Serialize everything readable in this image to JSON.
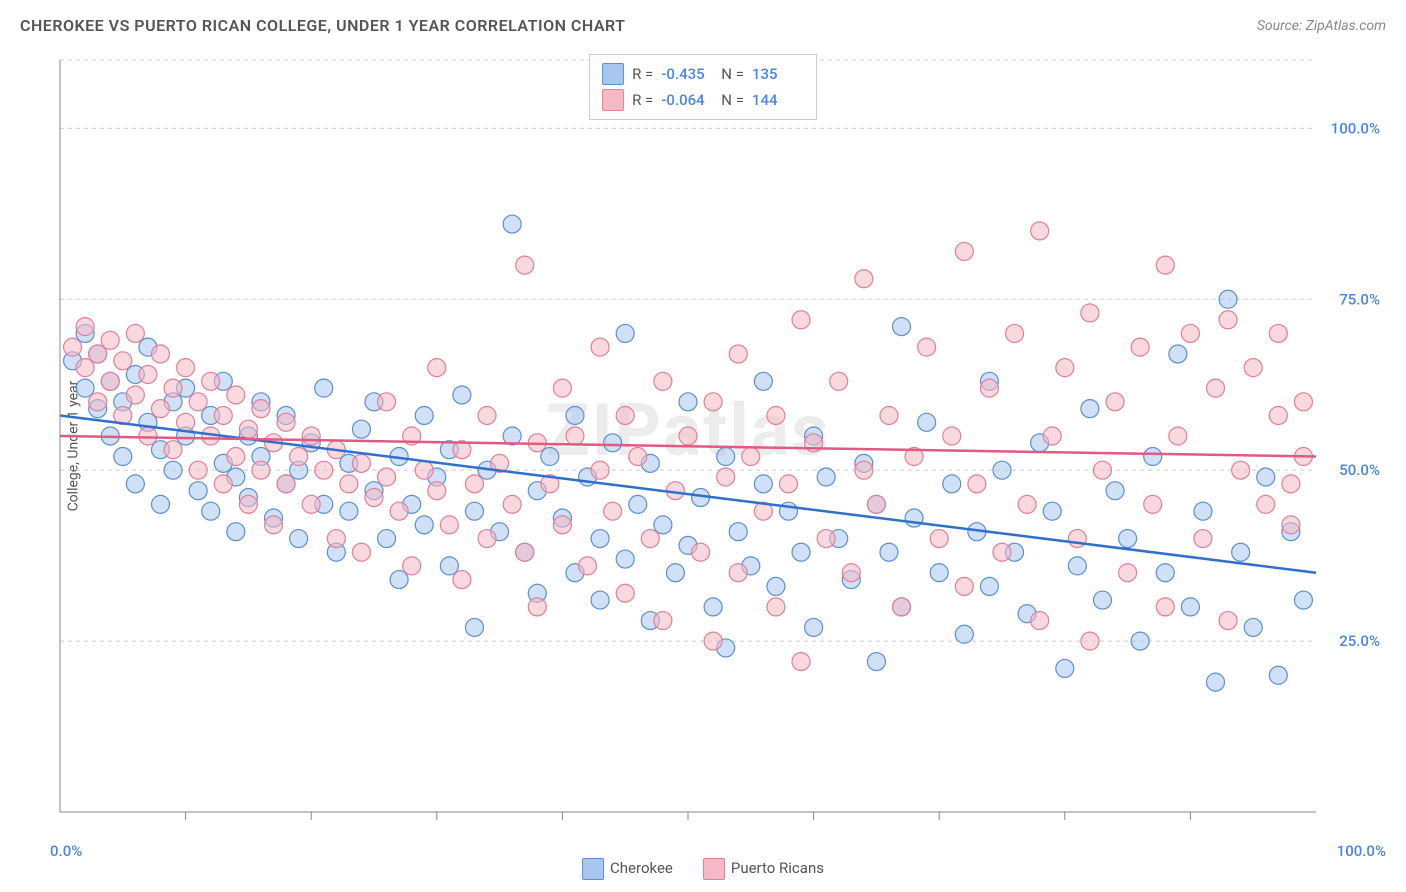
{
  "title": "CHEROKEE VS PUERTO RICAN COLLEGE, UNDER 1 YEAR CORRELATION CHART",
  "source": "Source: ZipAtlas.com",
  "ylabel": "College, Under 1 year",
  "watermark": "ZIPatlas",
  "chart": {
    "type": "scatter",
    "xlim": [
      0,
      100
    ],
    "ylim": [
      0,
      110
    ],
    "x_tick_start": 0,
    "x_tick_end": 100,
    "x_tick_step_minor": 10,
    "x_tick_labels": [
      {
        "pos": 0,
        "label": "0.0%"
      },
      {
        "pos": 100,
        "label": "100.0%"
      }
    ],
    "y_gridlines": [
      25,
      50,
      75,
      100,
      110
    ],
    "y_tick_labels": [
      {
        "pos": 25,
        "label": "25.0%"
      },
      {
        "pos": 50,
        "label": "50.0%"
      },
      {
        "pos": 75,
        "label": "75.0%"
      },
      {
        "pos": 100,
        "label": "100.0%"
      }
    ],
    "background_color": "#ffffff",
    "grid_color": "#cccccc",
    "grid_dash": "4 4",
    "tick_label_color": "#4a86e8",
    "axis_color": "#888888",
    "marker_radius": 9,
    "marker_opacity": 0.55,
    "trend_line_width": 2.5,
    "series": [
      {
        "name": "Cherokee",
        "fill": "#a9c7ee",
        "stroke": "#5b8fd6",
        "trend_color": "#2f6fd0",
        "R": "-0.435",
        "N": "135",
        "trend": {
          "x1": 0,
          "y1": 58,
          "x2": 100,
          "y2": 35
        },
        "points": [
          [
            1,
            66
          ],
          [
            2,
            62
          ],
          [
            2,
            70
          ],
          [
            3,
            59
          ],
          [
            3,
            67
          ],
          [
            4,
            63
          ],
          [
            4,
            55
          ],
          [
            5,
            60
          ],
          [
            5,
            52
          ],
          [
            6,
            64
          ],
          [
            6,
            48
          ],
          [
            7,
            57
          ],
          [
            7,
            68
          ],
          [
            8,
            53
          ],
          [
            8,
            45
          ],
          [
            9,
            60
          ],
          [
            9,
            50
          ],
          [
            10,
            62
          ],
          [
            10,
            55
          ],
          [
            11,
            47
          ],
          [
            12,
            58
          ],
          [
            12,
            44
          ],
          [
            13,
            51
          ],
          [
            13,
            63
          ],
          [
            14,
            49
          ],
          [
            14,
            41
          ],
          [
            15,
            55
          ],
          [
            15,
            46
          ],
          [
            16,
            60
          ],
          [
            16,
            52
          ],
          [
            17,
            43
          ],
          [
            18,
            58
          ],
          [
            18,
            48
          ],
          [
            19,
            50
          ],
          [
            19,
            40
          ],
          [
            20,
            54
          ],
          [
            21,
            45
          ],
          [
            21,
            62
          ],
          [
            22,
            38
          ],
          [
            23,
            51
          ],
          [
            23,
            44
          ],
          [
            24,
            56
          ],
          [
            25,
            47
          ],
          [
            25,
            60
          ],
          [
            26,
            40
          ],
          [
            27,
            52
          ],
          [
            27,
            34
          ],
          [
            28,
            45
          ],
          [
            29,
            58
          ],
          [
            29,
            42
          ],
          [
            30,
            49
          ],
          [
            31,
            36
          ],
          [
            31,
            53
          ],
          [
            32,
            61
          ],
          [
            33,
            44
          ],
          [
            33,
            27
          ],
          [
            34,
            50
          ],
          [
            35,
            41
          ],
          [
            36,
            55
          ],
          [
            36,
            86
          ],
          [
            37,
            38
          ],
          [
            38,
            47
          ],
          [
            38,
            32
          ],
          [
            39,
            52
          ],
          [
            40,
            43
          ],
          [
            41,
            35
          ],
          [
            41,
            58
          ],
          [
            42,
            49
          ],
          [
            43,
            40
          ],
          [
            43,
            31
          ],
          [
            44,
            54
          ],
          [
            45,
            70
          ],
          [
            45,
            37
          ],
          [
            46,
            45
          ],
          [
            47,
            28
          ],
          [
            47,
            51
          ],
          [
            48,
            42
          ],
          [
            49,
            35
          ],
          [
            50,
            60
          ],
          [
            50,
            39
          ],
          [
            51,
            46
          ],
          [
            52,
            30
          ],
          [
            53,
            52
          ],
          [
            53,
            24
          ],
          [
            54,
            41
          ],
          [
            55,
            36
          ],
          [
            56,
            48
          ],
          [
            56,
            63
          ],
          [
            57,
            33
          ],
          [
            58,
            44
          ],
          [
            59,
            38
          ],
          [
            60,
            55
          ],
          [
            60,
            27
          ],
          [
            61,
            49
          ],
          [
            62,
            40
          ],
          [
            63,
            34
          ],
          [
            64,
            51
          ],
          [
            65,
            22
          ],
          [
            65,
            45
          ],
          [
            66,
            38
          ],
          [
            67,
            71
          ],
          [
            67,
            30
          ],
          [
            68,
            43
          ],
          [
            69,
            57
          ],
          [
            70,
            35
          ],
          [
            71,
            48
          ],
          [
            72,
            26
          ],
          [
            73,
            41
          ],
          [
            74,
            63
          ],
          [
            74,
            33
          ],
          [
            75,
            50
          ],
          [
            76,
            38
          ],
          [
            77,
            29
          ],
          [
            78,
            54
          ],
          [
            79,
            44
          ],
          [
            80,
            21
          ],
          [
            81,
            36
          ],
          [
            82,
            59
          ],
          [
            83,
            31
          ],
          [
            84,
            47
          ],
          [
            85,
            40
          ],
          [
            86,
            25
          ],
          [
            87,
            52
          ],
          [
            88,
            35
          ],
          [
            89,
            67
          ],
          [
            90,
            30
          ],
          [
            91,
            44
          ],
          [
            92,
            19
          ],
          [
            93,
            75
          ],
          [
            94,
            38
          ],
          [
            95,
            27
          ],
          [
            96,
            49
          ],
          [
            97,
            20
          ],
          [
            98,
            41
          ],
          [
            99,
            31
          ]
        ]
      },
      {
        "name": "Puerto Ricans",
        "fill": "#f4b9c5",
        "stroke": "#e37f96",
        "trend_color": "#e05a82",
        "R": "-0.064",
        "N": "144",
        "trend": {
          "x1": 0,
          "y1": 55,
          "x2": 100,
          "y2": 52
        },
        "points": [
          [
            1,
            68
          ],
          [
            2,
            65
          ],
          [
            2,
            71
          ],
          [
            3,
            67
          ],
          [
            3,
            60
          ],
          [
            4,
            69
          ],
          [
            4,
            63
          ],
          [
            5,
            66
          ],
          [
            5,
            58
          ],
          [
            6,
            70
          ],
          [
            6,
            61
          ],
          [
            7,
            64
          ],
          [
            7,
            55
          ],
          [
            8,
            67
          ],
          [
            8,
            59
          ],
          [
            9,
            62
          ],
          [
            9,
            53
          ],
          [
            10,
            65
          ],
          [
            10,
            57
          ],
          [
            11,
            60
          ],
          [
            11,
            50
          ],
          [
            12,
            63
          ],
          [
            12,
            55
          ],
          [
            13,
            58
          ],
          [
            13,
            48
          ],
          [
            14,
            61
          ],
          [
            14,
            52
          ],
          [
            15,
            56
          ],
          [
            15,
            45
          ],
          [
            16,
            59
          ],
          [
            16,
            50
          ],
          [
            17,
            54
          ],
          [
            17,
            42
          ],
          [
            18,
            57
          ],
          [
            18,
            48
          ],
          [
            19,
            52
          ],
          [
            20,
            55
          ],
          [
            20,
            45
          ],
          [
            21,
            50
          ],
          [
            22,
            53
          ],
          [
            22,
            40
          ],
          [
            23,
            48
          ],
          [
            24,
            51
          ],
          [
            24,
            38
          ],
          [
            25,
            46
          ],
          [
            26,
            49
          ],
          [
            26,
            60
          ],
          [
            27,
            44
          ],
          [
            28,
            55
          ],
          [
            28,
            36
          ],
          [
            29,
            50
          ],
          [
            30,
            47
          ],
          [
            30,
            65
          ],
          [
            31,
            42
          ],
          [
            32,
            53
          ],
          [
            32,
            34
          ],
          [
            33,
            48
          ],
          [
            34,
            58
          ],
          [
            34,
            40
          ],
          [
            35,
            51
          ],
          [
            36,
            45
          ],
          [
            37,
            80
          ],
          [
            37,
            38
          ],
          [
            38,
            54
          ],
          [
            38,
            30
          ],
          [
            39,
            48
          ],
          [
            40,
            62
          ],
          [
            40,
            42
          ],
          [
            41,
            55
          ],
          [
            42,
            36
          ],
          [
            43,
            50
          ],
          [
            43,
            68
          ],
          [
            44,
            44
          ],
          [
            45,
            58
          ],
          [
            45,
            32
          ],
          [
            46,
            52
          ],
          [
            47,
            40
          ],
          [
            48,
            63
          ],
          [
            48,
            28
          ],
          [
            49,
            47
          ],
          [
            50,
            55
          ],
          [
            51,
            38
          ],
          [
            52,
            60
          ],
          [
            52,
            25
          ],
          [
            53,
            49
          ],
          [
            54,
            67
          ],
          [
            54,
            35
          ],
          [
            55,
            52
          ],
          [
            56,
            44
          ],
          [
            57,
            58
          ],
          [
            57,
            30
          ],
          [
            58,
            48
          ],
          [
            59,
            72
          ],
          [
            59,
            22
          ],
          [
            60,
            54
          ],
          [
            61,
            40
          ],
          [
            62,
            63
          ],
          [
            63,
            35
          ],
          [
            64,
            50
          ],
          [
            64,
            78
          ],
          [
            65,
            45
          ],
          [
            66,
            58
          ],
          [
            67,
            30
          ],
          [
            68,
            52
          ],
          [
            69,
            68
          ],
          [
            70,
            40
          ],
          [
            71,
            55
          ],
          [
            72,
            82
          ],
          [
            72,
            33
          ],
          [
            73,
            48
          ],
          [
            74,
            62
          ],
          [
            75,
            38
          ],
          [
            76,
            70
          ],
          [
            77,
            45
          ],
          [
            78,
            85
          ],
          [
            78,
            28
          ],
          [
            79,
            55
          ],
          [
            80,
            65
          ],
          [
            81,
            40
          ],
          [
            82,
            73
          ],
          [
            82,
            25
          ],
          [
            83,
            50
          ],
          [
            84,
            60
          ],
          [
            85,
            35
          ],
          [
            86,
            68
          ],
          [
            87,
            45
          ],
          [
            88,
            80
          ],
          [
            88,
            30
          ],
          [
            89,
            55
          ],
          [
            90,
            70
          ],
          [
            91,
            40
          ],
          [
            92,
            62
          ],
          [
            93,
            72
          ],
          [
            93,
            28
          ],
          [
            94,
            50
          ],
          [
            95,
            65
          ],
          [
            96,
            45
          ],
          [
            97,
            58
          ],
          [
            97,
            70
          ],
          [
            98,
            48
          ],
          [
            98,
            42
          ],
          [
            99,
            52
          ],
          [
            99,
            60
          ]
        ]
      }
    ]
  },
  "stats_box": {
    "rows": [
      {
        "swatch_fill": "#a9c7ee",
        "swatch_stroke": "#5b8fd6",
        "r_label": "R =",
        "r_val": "-0.435",
        "n_label": "N =",
        "n_val": "135"
      },
      {
        "swatch_fill": "#f4b9c5",
        "swatch_stroke": "#e37f96",
        "r_label": "R =",
        "r_val": "-0.064",
        "n_label": "N =",
        "n_val": "144"
      }
    ]
  },
  "bottom_legend": [
    {
      "label": "Cherokee",
      "fill": "#a9c7ee",
      "stroke": "#5b8fd6"
    },
    {
      "label": "Puerto Ricans",
      "fill": "#f4b9c5",
      "stroke": "#e37f96"
    }
  ]
}
